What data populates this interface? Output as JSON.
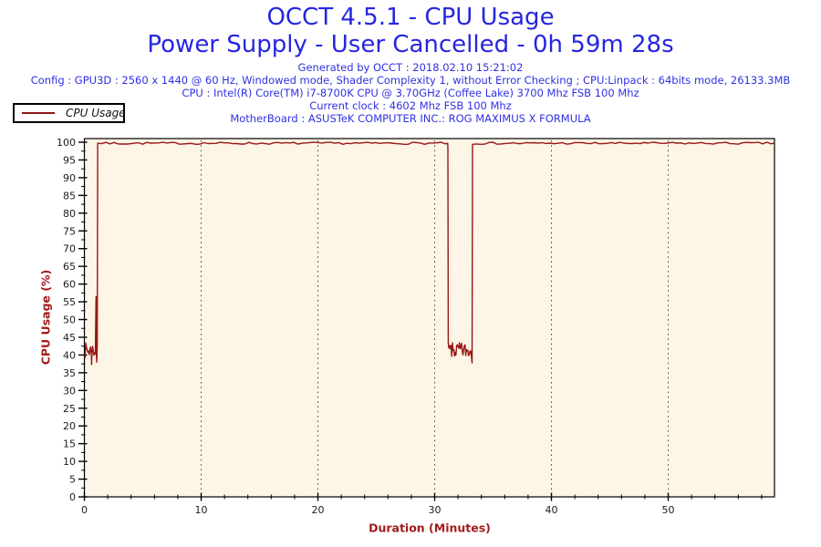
{
  "header": {
    "title_line1": "OCCT 4.5.1 - CPU Usage",
    "title_line2": "Power Supply - User Cancelled - 0h 59m 28s",
    "info_lines": [
      "Generated by OCCT : 2018.02.10 15:21:02",
      "Config : GPU3D : 2560 x 1440 @ 60 Hz, Windowed mode, Shader Complexity 1, without Error Checking ; CPU:Linpack : 64bits mode, 26133.3MB",
      "CPU : Intel(R) Core(TM) i7-8700K CPU @ 3.70GHz (Coffee Lake) 3700 Mhz FSB 100 Mhz",
      "Current clock : 4602 Mhz FSB 100 Mhz",
      "MotherBoard : ASUSTeK COMPUTER INC.: ROG MAXIMUS X FORMULA"
    ]
  },
  "legend": {
    "label": "CPU Usage"
  },
  "colors": {
    "title_blue": "#2626DF",
    "info_blue": "#3030E2",
    "trace_red": "#991717",
    "axis_title_red": "#A31B1B",
    "plot_background": "#FDF5E5",
    "axis_black": "#000000",
    "grid_dot": "#404040",
    "tick_label": "#1B1B1B"
  },
  "chart_data": {
    "type": "line",
    "title": "CPU Usage over test duration",
    "xlabel": "Duration (Minutes)",
    "ylabel": "CPU Usage (%)",
    "xlim": [
      0,
      59.1
    ],
    "ylim": [
      0,
      100
    ],
    "x_major_ticks": [
      0,
      10,
      20,
      30,
      40,
      50
    ],
    "x_minor_step": 2,
    "x_minor_max": 58,
    "y_major_ticks": [
      0,
      5,
      10,
      15,
      20,
      25,
      30,
      35,
      40,
      45,
      50,
      55,
      60,
      65,
      70,
      75,
      80,
      85,
      90,
      95,
      100
    ],
    "y_minor_step": 2.5,
    "grid": "vertical dotted lines at each 10-minute major tick",
    "legend_position": "top-left outside plot",
    "series": [
      {
        "name": "CPU Usage",
        "color": "#991717",
        "description": "Idle noise ~39-44% for first ~1 min with brief spike to ~56%, then 100% load until ~31.2 min, drop to ~39-44% noise until ~33.2 min, then 100% load until test end at ~59 min (user cancelled at 0h 59m 28s).",
        "segments": [
          {
            "type": "noise",
            "t0": 0.0,
            "t1": 0.6,
            "min": 39.0,
            "max": 43.5
          },
          {
            "type": "point",
            "t": 0.62,
            "v": 37.3
          },
          {
            "type": "noise",
            "t0": 0.64,
            "t1": 0.96,
            "min": 39.0,
            "max": 43.5
          },
          {
            "type": "point",
            "t": 1.0,
            "v": 56.5
          },
          {
            "type": "point",
            "t": 1.03,
            "v": 40.0
          },
          {
            "type": "point",
            "t": 1.06,
            "v": 38.0
          },
          {
            "type": "point",
            "t": 1.1,
            "v": 43.0
          },
          {
            "type": "flat",
            "t0": 1.14,
            "t1": 31.12,
            "base": 99.7,
            "jitter": 0.3
          },
          {
            "type": "point",
            "t": 31.13,
            "v": 98.0
          },
          {
            "type": "noise",
            "t0": 31.16,
            "t1": 33.18,
            "min": 39.0,
            "max": 43.5
          },
          {
            "type": "point",
            "t": 33.2,
            "v": 37.8
          },
          {
            "type": "flat",
            "t0": 33.24,
            "t1": 59.05,
            "base": 99.7,
            "jitter": 0.3
          }
        ]
      }
    ]
  }
}
